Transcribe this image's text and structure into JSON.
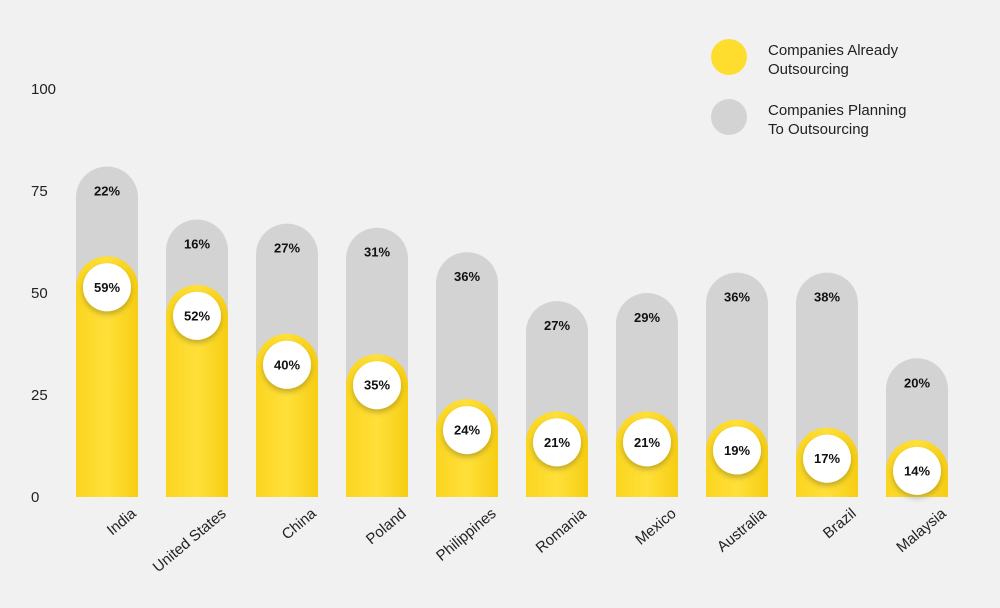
{
  "chart_data": {
    "type": "bar",
    "stacked": true,
    "categories": [
      "India",
      "United States",
      "China",
      "Poland",
      "Philippines",
      "Romania",
      "Mexico",
      "Australia",
      "Brazil",
      "Malaysia"
    ],
    "series": [
      {
        "name": "Companies Already Outsourcing",
        "color": "#ffdd2e",
        "values": [
          59,
          52,
          40,
          35,
          24,
          21,
          21,
          19,
          17,
          14
        ],
        "labels": [
          "59%",
          "52%",
          "40%",
          "35%",
          "24%",
          "21%",
          "21%",
          "19%",
          "17%",
          "14%"
        ]
      },
      {
        "name": "Companies Planning To Outsourcing",
        "color": "#d3d3d3",
        "values": [
          22,
          16,
          27,
          31,
          36,
          27,
          29,
          36,
          38,
          20
        ],
        "labels": [
          "22%",
          "16%",
          "27%",
          "31%",
          "36%",
          "27%",
          "29%",
          "36%",
          "38%",
          "20%"
        ]
      }
    ],
    "yticks": [
      "0",
      "25",
      "50",
      "75",
      "100"
    ],
    "ylim": [
      0,
      100
    ],
    "legend_position": "top-right",
    "legend": [
      {
        "lines": [
          "Companies Already",
          "Outsourcing"
        ],
        "color": "#ffdd2e"
      },
      {
        "lines": [
          "Companies Planning",
          "To Outsourcing"
        ],
        "color": "#d3d3d3"
      }
    ],
    "grid": false
  }
}
